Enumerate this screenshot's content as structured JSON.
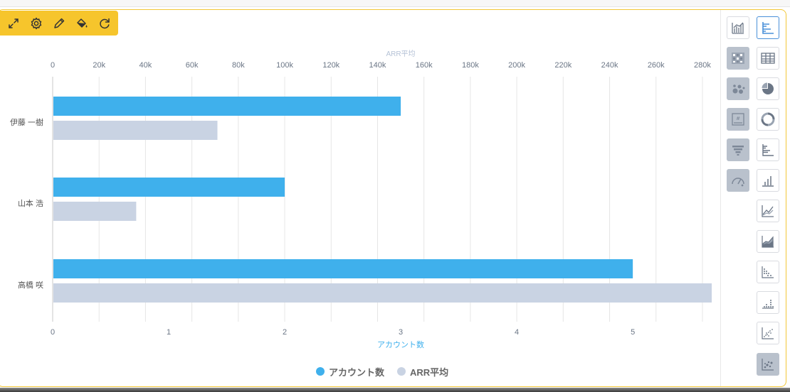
{
  "toolbar": {
    "icons": [
      "expand-icon",
      "gear-icon",
      "pencil-icon",
      "paint-bucket-icon",
      "refresh-icon"
    ]
  },
  "chart_data": {
    "type": "bar",
    "orientation": "horizontal",
    "categories": [
      "伊藤 一樹",
      "山本 浩",
      "高橋 咲"
    ],
    "series": [
      {
        "name": "アカウント数",
        "values": [
          3,
          2,
          5
        ],
        "color": "#3fb0ec",
        "axis": "bottom"
      },
      {
        "name": "ARR平均",
        "values": [
          71000,
          36000,
          284000
        ],
        "color": "#c9d3e3",
        "axis": "top"
      }
    ],
    "top_axis": {
      "label": "ARR平均",
      "ticks": [
        "0",
        "20k",
        "40k",
        "60k",
        "80k",
        "100k",
        "120k",
        "140k",
        "160k",
        "180k",
        "200k",
        "220k",
        "240k",
        "260k",
        "280k"
      ],
      "range": [
        0,
        284000
      ]
    },
    "bottom_axis": {
      "label": "アカウント数",
      "ticks": [
        "0",
        "1",
        "2",
        "3",
        "4",
        "5"
      ],
      "range": [
        0,
        5.68
      ]
    },
    "grid": true,
    "legend_position": "bottom-center"
  },
  "legend": [
    {
      "name": "アカウント数",
      "color": "#3fb0ec"
    },
    {
      "name": "ARR平均",
      "color": "#c9d3e3"
    }
  ],
  "side_panel": {
    "left_column": [
      "combo-chart-icon",
      "heatmap-icon",
      "bubble-icon",
      "number-card-icon",
      "funnel-icon",
      "gauge-icon"
    ],
    "right_column": [
      "horizontal-bar-icon",
      "table-icon",
      "pie-icon",
      "donut-icon",
      "grouped-horizontal-bar-icon",
      "column-chart-icon",
      "line-chart-icon",
      "area-chart-icon",
      "dot-strip-icon",
      "dot-column-icon",
      "scatter-icon",
      "scatter-matrix-icon"
    ],
    "active": "horizontal-bar-icon"
  }
}
